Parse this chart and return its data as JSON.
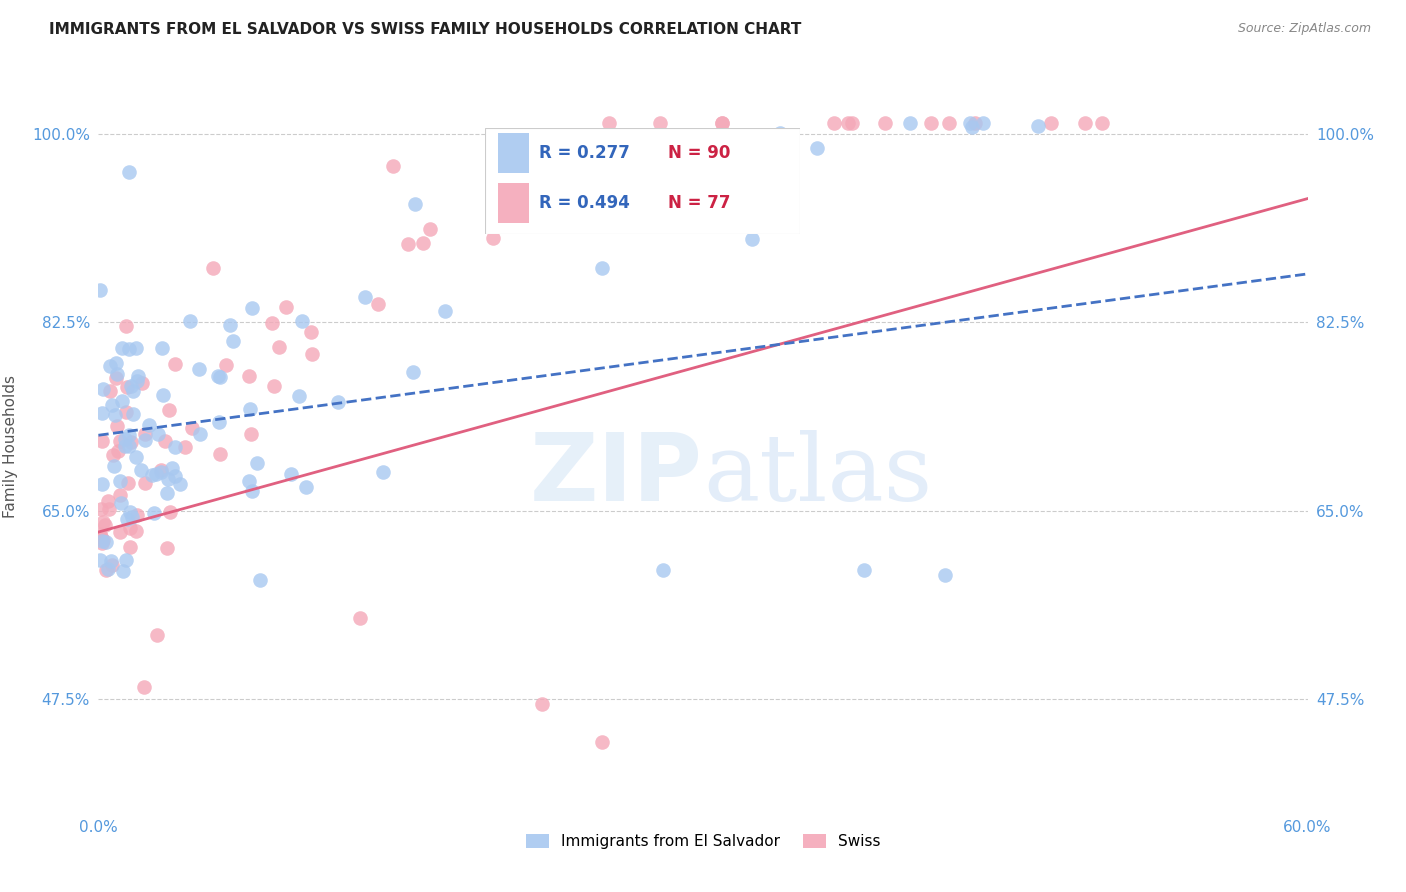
{
  "title": "IMMIGRANTS FROM EL SALVADOR VS SWISS FAMILY HOUSEHOLDS CORRELATION CHART",
  "source": "Source: ZipAtlas.com",
  "ylabel": "Family Households",
  "ytick_labels": [
    "100.0%",
    "82.5%",
    "65.0%",
    "47.5%"
  ],
  "ytick_values": [
    1.0,
    0.825,
    0.65,
    0.475
  ],
  "x_min": 0.0,
  "x_max": 0.6,
  "y_min": 0.37,
  "y_max": 1.05,
  "watermark_zip": "ZIP",
  "watermark_atlas": "atlas",
  "legend_r1": "R = 0.277",
  "legend_n1": "N = 90",
  "legend_r2": "R = 0.494",
  "legend_n2": "N = 77",
  "color_blue": "#a8c8f0",
  "color_pink": "#f4a8b8",
  "trendline_blue": "#4472c4",
  "trendline_pink": "#e06080",
  "label_blue": "Immigrants from El Salvador",
  "label_pink": "Swiss",
  "title_color": "#222222",
  "source_color": "#888888",
  "axis_color": "#5599dd",
  "ylabel_color": "#555555",
  "grid_color": "#cccccc"
}
